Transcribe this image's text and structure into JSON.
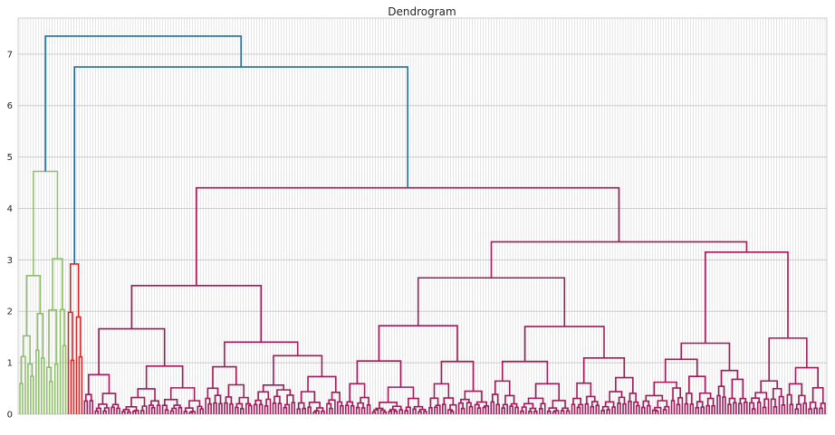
{
  "chart_data": {
    "type": "dendrogram",
    "title": "Dendrogram",
    "xlabel": "",
    "ylabel": "",
    "ylim": [
      0,
      7.7
    ],
    "yticks": [
      0,
      1,
      2,
      3,
      4,
      5,
      6,
      7
    ],
    "grid": true,
    "leaf_count": 300,
    "colors": {
      "above_threshold": "#1f6f9a",
      "cluster_green": "#8fbf6a",
      "cluster_red": "#d62728",
      "cluster_magenta": "#a0195a",
      "leaf_magenta": "#c2185b",
      "grid": "#cccccc"
    },
    "merges": [
      {
        "name": "root",
        "height": 7.35,
        "left": "green_cluster",
        "right": "blue_node",
        "color": "above_threshold"
      },
      {
        "name": "blue_node",
        "height": 6.75,
        "left": "red_cluster",
        "right": "magenta_cluster",
        "color": "above_threshold"
      },
      {
        "name": "green_cluster",
        "height": 4.72,
        "color": "cluster_green"
      },
      {
        "name": "red_cluster",
        "height": 2.92,
        "color": "cluster_red"
      },
      {
        "name": "magenta_cluster",
        "height": 4.4,
        "left": "m_left",
        "right": "m_right",
        "color": "cluster_magenta"
      },
      {
        "name": "m_left",
        "height": 2.5,
        "color": "cluster_magenta"
      },
      {
        "name": "m_right",
        "height": 3.35,
        "left": "m_mid",
        "right": "m_far",
        "color": "cluster_magenta"
      },
      {
        "name": "m_mid",
        "height": 2.65,
        "color": "cluster_magenta"
      },
      {
        "name": "m_far",
        "height": 3.15,
        "color": "cluster_magenta"
      }
    ]
  }
}
